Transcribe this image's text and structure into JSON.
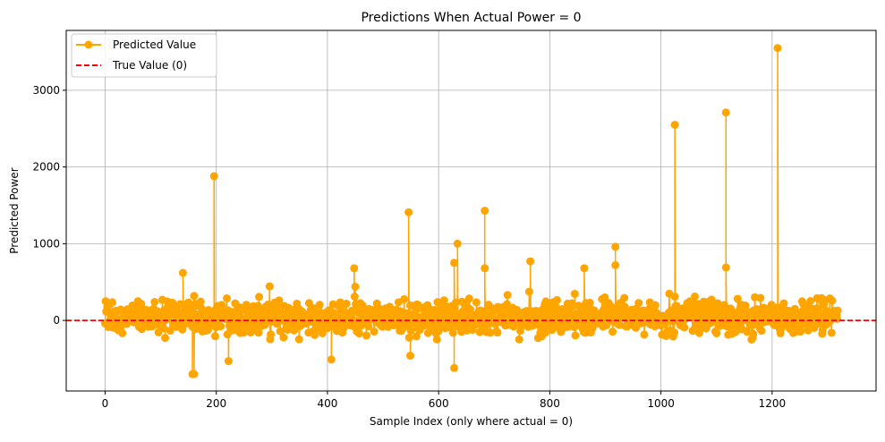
{
  "chart_data": {
    "type": "line",
    "title": "Predictions When Actual Power = 0",
    "xlabel": "Sample Index (only where actual = 0)",
    "ylabel": "Predicted Power",
    "xlim": [
      -70,
      1387
    ],
    "ylim": [
      -920,
      3780
    ],
    "xticks": [
      0,
      200,
      400,
      600,
      800,
      1000,
      1200
    ],
    "yticks": [
      0,
      1000,
      2000,
      3000
    ],
    "grid": true,
    "legend_position": "upper left",
    "series": [
      {
        "name": "Predicted Value",
        "color": "#FFA500",
        "style": "solid line with circle markers",
        "x_start": 0,
        "x_end": 1318,
        "spikes": [
          {
            "x": 140,
            "y": 620
          },
          {
            "x": 157,
            "y": -700
          },
          {
            "x": 160,
            "y": -700
          },
          {
            "x": 196,
            "y": 1880
          },
          {
            "x": 222,
            "y": -530
          },
          {
            "x": 407,
            "y": -510
          },
          {
            "x": 448,
            "y": 680
          },
          {
            "x": 546,
            "y": 1410
          },
          {
            "x": 549,
            "y": -460
          },
          {
            "x": 628,
            "y": -620
          },
          {
            "x": 628,
            "y": 750
          },
          {
            "x": 634,
            "y": 1000
          },
          {
            "x": 683,
            "y": 1430
          },
          {
            "x": 683,
            "y": 680
          },
          {
            "x": 765,
            "y": 770
          },
          {
            "x": 862,
            "y": 680
          },
          {
            "x": 918,
            "y": 960
          },
          {
            "x": 918,
            "y": 720
          },
          {
            "x": 1025,
            "y": 2550
          },
          {
            "x": 1117,
            "y": 2710
          },
          {
            "x": 1117,
            "y": 690
          },
          {
            "x": 1210,
            "y": 3550
          }
        ],
        "typical_range": [
          -350,
          450
        ]
      },
      {
        "name": "True Value (0)",
        "color": "#FF0000",
        "style": "dashed",
        "constant_y": 0
      }
    ]
  }
}
